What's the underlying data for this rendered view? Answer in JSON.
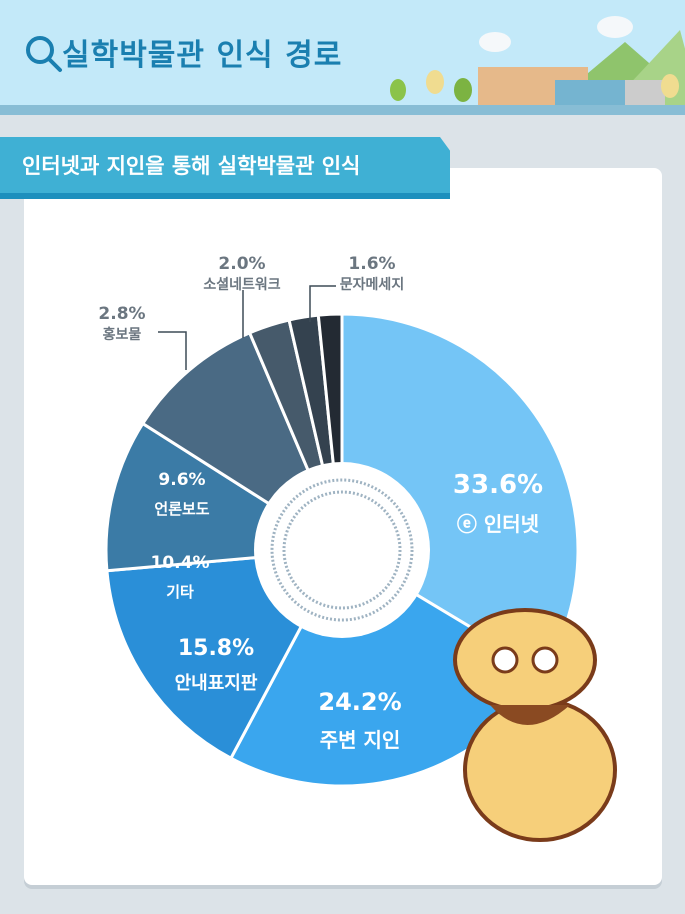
{
  "header": {
    "title": "실학박물관 인식 경로",
    "search_icon": "search-icon"
  },
  "banner": {
    "text": "인터넷과 지인을 통해 실학박물관 인식"
  },
  "chart_data": {
    "type": "pie",
    "title": "실학박물관 인식 경로",
    "donut": true,
    "categories": [
      "인터넷",
      "주변 지인",
      "안내표지판",
      "기타",
      "언론보도",
      "홍보물",
      "소셜네트워크",
      "문자메세지"
    ],
    "values": [
      33.6,
      24.2,
      15.8,
      10.4,
      9.6,
      2.8,
      2.0,
      1.6
    ],
    "labels": [
      "33.6%",
      "24.2%",
      "15.8%",
      "10.4%",
      "9.6%",
      "2.8%",
      "2.0%",
      "1.6%"
    ],
    "colors": [
      "#74c5f6",
      "#3aa6ee",
      "#2a8fd8",
      "#3b7ba6",
      "#4a6a84",
      "#465a6b",
      "#34424f",
      "#232a33"
    ],
    "start": "12 o'clock",
    "direction": "clockwise"
  }
}
